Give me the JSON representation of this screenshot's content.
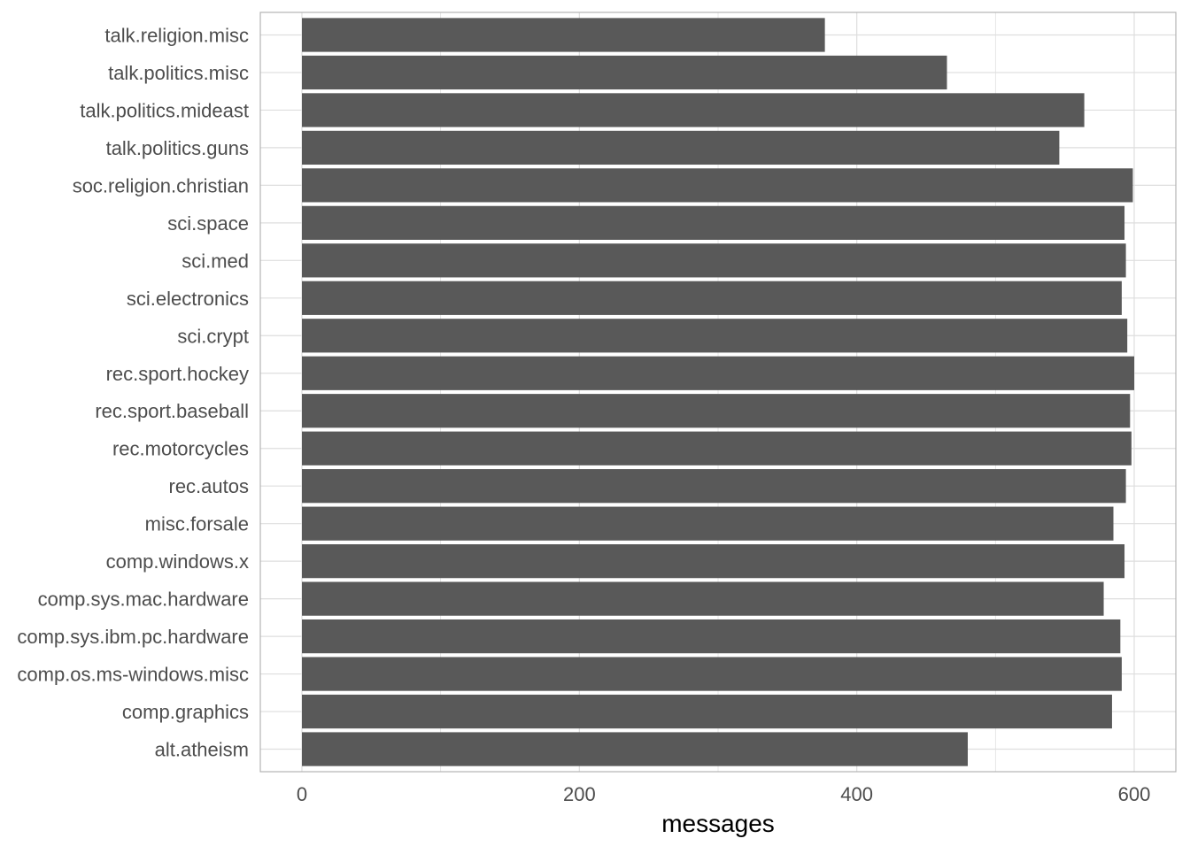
{
  "chart_data": {
    "type": "bar",
    "orientation": "horizontal",
    "categories": [
      "alt.atheism",
      "comp.graphics",
      "comp.os.ms-windows.misc",
      "comp.sys.ibm.pc.hardware",
      "comp.sys.mac.hardware",
      "comp.windows.x",
      "misc.forsale",
      "rec.autos",
      "rec.motorcycles",
      "rec.sport.baseball",
      "rec.sport.hockey",
      "sci.crypt",
      "sci.electronics",
      "sci.med",
      "sci.space",
      "soc.religion.christian",
      "talk.politics.guns",
      "talk.politics.mideast",
      "talk.politics.misc",
      "talk.religion.misc"
    ],
    "values": [
      480,
      584,
      591,
      590,
      578,
      593,
      585,
      594,
      598,
      597,
      600,
      595,
      591,
      594,
      593,
      599,
      546,
      564,
      465,
      377
    ],
    "title": "",
    "xlabel": "messages",
    "ylabel": "",
    "xlim": [
      -30,
      630
    ],
    "xticks": [
      0,
      200,
      400,
      600
    ],
    "xtick_labels": [
      "0",
      "200",
      "400",
      "600"
    ],
    "grid": true,
    "bar_color": "#595959",
    "grid_color": "#dedede",
    "panel_border_color": "#b3b3b3",
    "tick_label_color": "#4d4d4d",
    "axis_title_color": "#000000"
  }
}
